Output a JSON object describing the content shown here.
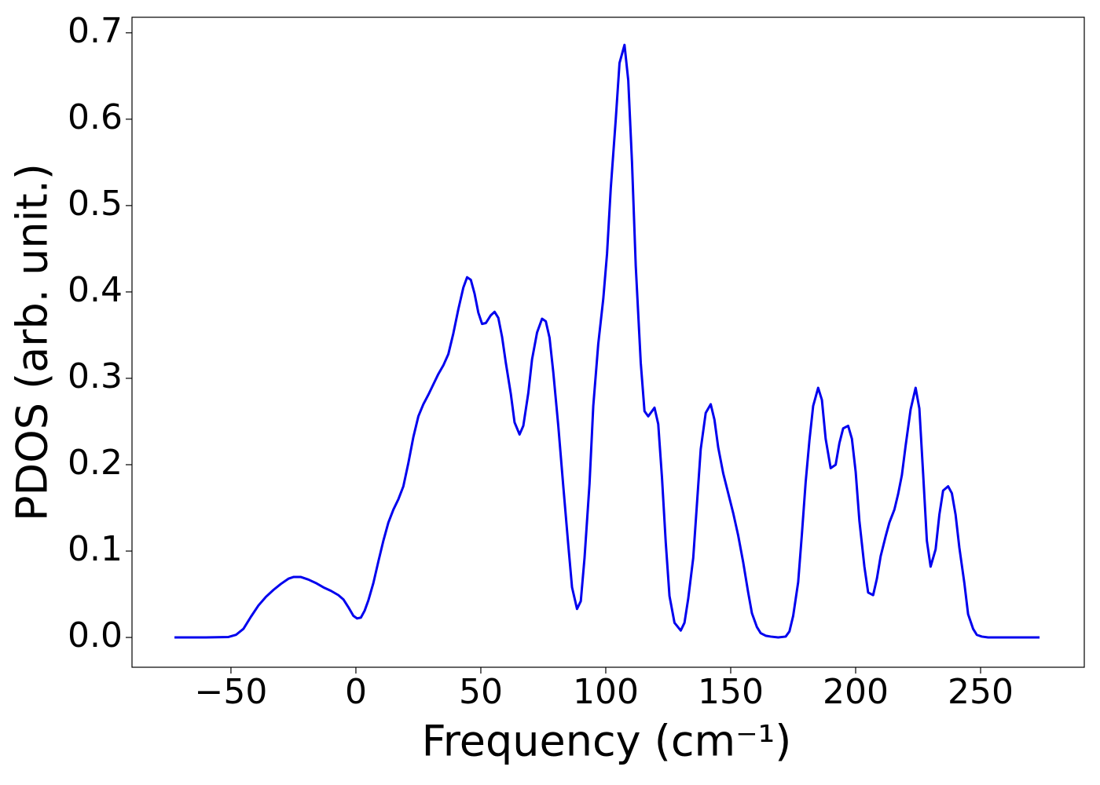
{
  "chart_data": {
    "type": "line",
    "xlabel": "Frequency (cm⁻¹)",
    "ylabel": "PDOS (arb. unit.)",
    "color": "#0000ee",
    "xlim": [
      -89.6,
      291.5
    ],
    "ylim": [
      -0.0345,
      0.718
    ],
    "xticks": [
      {
        "value": -50,
        "label": "−50"
      },
      0,
      50,
      100,
      150,
      200,
      250
    ],
    "yticks": [
      {
        "value": 0,
        "label": "0.0"
      },
      0.1,
      0.2,
      0.3,
      0.4,
      0.5,
      0.6,
      0.7
    ],
    "x": [
      -72.6,
      -60,
      -51,
      -48,
      -45,
      -42,
      -39,
      -36,
      -33,
      -30,
      -27,
      -25,
      -22,
      -19,
      -16,
      -13,
      -10,
      -7,
      -5,
      -3,
      -1,
      0.5,
      2,
      3.5,
      5,
      7,
      9,
      11,
      13,
      15,
      17,
      19,
      21,
      23,
      25,
      27,
      29,
      31,
      33,
      35,
      37,
      39,
      41,
      43,
      44.5,
      46,
      47.5,
      49,
      50.5,
      52,
      54,
      55.5,
      57,
      58.5,
      60,
      62,
      63.5,
      65.5,
      67,
      69,
      70.5,
      72.5,
      74.5,
      76,
      77.5,
      79,
      81,
      83,
      85,
      86.5,
      88.5,
      90,
      91.5,
      93.5,
      95,
      97,
      99,
      100.5,
      102,
      104,
      105.5,
      107.5,
      109,
      110.5,
      112,
      114,
      115.5,
      117,
      119.5,
      121,
      122.5,
      124,
      125.5,
      127.5,
      130,
      131.5,
      133,
      135,
      136.5,
      138,
      140,
      142,
      143.5,
      145,
      147,
      149,
      151,
      153,
      155,
      157,
      158.5,
      160.5,
      162,
      164,
      166,
      169,
      172,
      173.5,
      175,
      177,
      178.5,
      180,
      181.5,
      183,
      185,
      186.5,
      188,
      190,
      192,
      193.5,
      195,
      197,
      198.5,
      200,
      201.5,
      203.5,
      205,
      207,
      208.5,
      210,
      212,
      213.5,
      215.5,
      217,
      218.5,
      220,
      222,
      224,
      225.5,
      227,
      228.5,
      230,
      232,
      233.5,
      235,
      237,
      238.5,
      240,
      241.5,
      243.5,
      245,
      247,
      248.5,
      250.5,
      253,
      273.6
    ],
    "values": [
      0,
      0,
      0.0005,
      0.003,
      0.01,
      0.024,
      0.037,
      0.047,
      0.055,
      0.062,
      0.068,
      0.07,
      0.07,
      0.067,
      0.063,
      0.058,
      0.054,
      0.049,
      0.044,
      0.035,
      0.025,
      0.022,
      0.023,
      0.031,
      0.043,
      0.063,
      0.088,
      0.112,
      0.133,
      0.148,
      0.16,
      0.175,
      0.202,
      0.232,
      0.256,
      0.27,
      0.281,
      0.293,
      0.305,
      0.315,
      0.328,
      0.352,
      0.38,
      0.405,
      0.417,
      0.414,
      0.398,
      0.376,
      0.363,
      0.364,
      0.373,
      0.377,
      0.37,
      0.348,
      0.318,
      0.282,
      0.249,
      0.235,
      0.245,
      0.283,
      0.322,
      0.353,
      0.369,
      0.366,
      0.347,
      0.307,
      0.245,
      0.175,
      0.107,
      0.058,
      0.033,
      0.042,
      0.092,
      0.178,
      0.268,
      0.34,
      0.392,
      0.444,
      0.52,
      0.6,
      0.665,
      0.686,
      0.645,
      0.55,
      0.43,
      0.318,
      0.262,
      0.256,
      0.266,
      0.247,
      0.185,
      0.11,
      0.048,
      0.017,
      0.008,
      0.017,
      0.045,
      0.092,
      0.155,
      0.218,
      0.26,
      0.27,
      0.252,
      0.22,
      0.19,
      0.167,
      0.144,
      0.118,
      0.087,
      0.052,
      0.028,
      0.012,
      0.005,
      0.002,
      0.001,
      0,
      0.001,
      0.007,
      0.025,
      0.064,
      0.12,
      0.18,
      0.228,
      0.268,
      0.289,
      0.275,
      0.23,
      0.196,
      0.2,
      0.225,
      0.242,
      0.245,
      0.23,
      0.192,
      0.135,
      0.082,
      0.052,
      0.049,
      0.068,
      0.094,
      0.117,
      0.133,
      0.148,
      0.166,
      0.188,
      0.222,
      0.264,
      0.289,
      0.265,
      0.19,
      0.112,
      0.082,
      0.102,
      0.142,
      0.17,
      0.175,
      0.167,
      0.142,
      0.104,
      0.063,
      0.027,
      0.01,
      0.003,
      0.001,
      0,
      0
    ]
  }
}
